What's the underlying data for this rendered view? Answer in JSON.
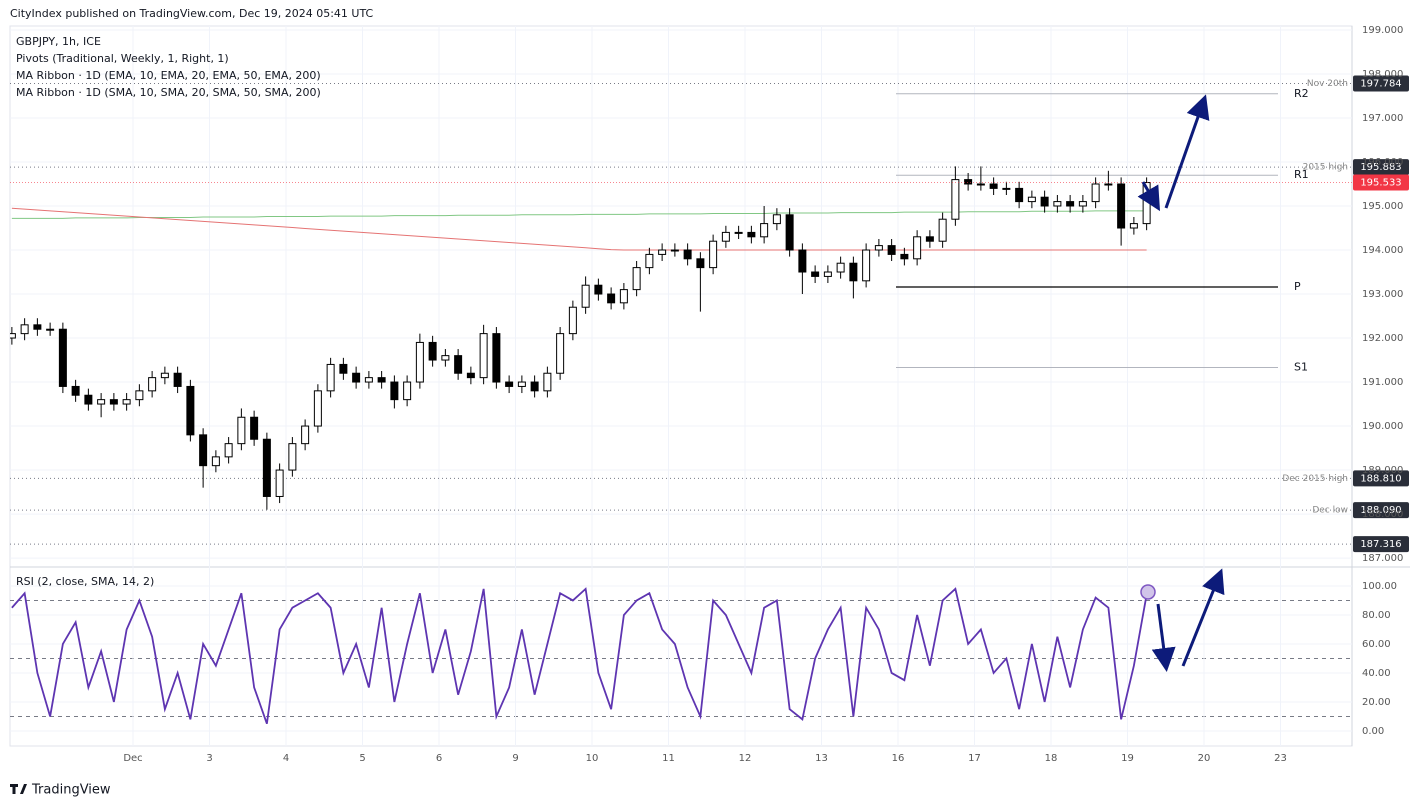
{
  "header": {
    "published": "CityIndex published on TradingView.com, Dec 19, 2024 05:41 UTC"
  },
  "chart_data": [
    {
      "type": "candlestick",
      "title": "GBPJPY, 1h, ICE",
      "indicators": [
        "Pivots (Traditional, Weekly, 1, Right, 1)",
        "MA Ribbon · 1D (EMA, 10, EMA, 20, EMA, 50, EMA, 200)",
        "MA Ribbon · 1D (SMA, 10, SMA, 20, SMA, 50, SMA, 200)"
      ],
      "open": [
        192.0,
        192.1,
        192.3,
        192.2,
        192.2,
        190.9,
        190.7,
        190.5,
        190.6,
        190.5,
        190.6,
        190.8,
        191.1,
        191.2,
        190.9,
        189.8,
        189.1,
        189.3,
        189.6,
        190.2,
        189.7,
        188.4,
        189.0,
        189.6,
        190.0,
        190.8,
        191.4,
        191.2,
        191.0,
        191.1,
        191.0,
        190.6,
        191.0,
        191.9,
        191.5,
        191.6,
        191.2,
        191.1,
        192.1,
        191.0,
        190.9,
        191.0,
        190.8,
        191.2,
        192.1,
        192.7,
        193.2,
        193.0,
        192.8,
        193.1,
        193.6,
        193.9,
        194.0,
        194.0,
        193.8,
        193.6,
        194.2,
        194.4,
        194.4,
        194.3,
        194.6,
        194.8,
        194.0,
        193.5,
        193.4,
        193.5,
        193.7,
        193.3,
        194.0,
        194.1,
        193.9,
        193.8,
        194.3,
        194.2,
        194.7,
        195.6,
        195.5,
        195.5,
        195.4,
        195.4,
        195.1,
        195.2,
        195.0,
        195.1,
        195.0,
        195.1,
        195.5,
        195.5,
        194.5,
        194.6,
        null,
        null,
        null,
        null,
        null,
        null,
        null,
        null,
        null,
        null,
        null,
        null,
        null,
        null,
        null
      ],
      "high": [
        192.25,
        192.45,
        192.45,
        192.35,
        192.35,
        191.05,
        190.85,
        190.75,
        190.75,
        190.75,
        190.95,
        191.25,
        191.35,
        191.35,
        191.05,
        189.95,
        189.45,
        189.75,
        190.4,
        190.35,
        189.85,
        189.15,
        189.75,
        190.15,
        190.95,
        191.55,
        191.55,
        191.35,
        191.25,
        191.25,
        191.15,
        191.15,
        192.1,
        192.05,
        191.75,
        191.75,
        191.35,
        192.3,
        192.25,
        191.15,
        191.15,
        191.15,
        191.35,
        192.25,
        192.85,
        193.4,
        193.35,
        193.15,
        193.25,
        193.75,
        194.05,
        194.15,
        194.15,
        194.15,
        193.95,
        194.35,
        194.55,
        194.55,
        194.55,
        195.0,
        194.95,
        194.95,
        194.15,
        193.65,
        193.65,
        193.85,
        193.85,
        194.15,
        194.25,
        194.25,
        194.05,
        194.45,
        194.45,
        194.85,
        195.9,
        195.75,
        195.9,
        195.65,
        195.55,
        195.55,
        195.35,
        195.35,
        195.25,
        195.25,
        195.25,
        195.65,
        195.8,
        195.65,
        194.75,
        195.65,
        null,
        null,
        null,
        null,
        null,
        null,
        null,
        null,
        null,
        null,
        null,
        null,
        null,
        null,
        null
      ],
      "low": [
        191.85,
        191.95,
        192.05,
        192.05,
        190.75,
        190.55,
        190.35,
        190.2,
        190.35,
        190.35,
        190.45,
        190.65,
        190.95,
        190.75,
        189.65,
        188.6,
        188.95,
        189.15,
        189.45,
        189.55,
        188.1,
        188.25,
        188.85,
        189.45,
        189.85,
        190.65,
        191.05,
        190.85,
        190.85,
        190.85,
        190.4,
        190.45,
        190.85,
        191.35,
        191.35,
        191.05,
        190.95,
        190.95,
        190.85,
        190.75,
        190.75,
        190.65,
        190.65,
        191.05,
        191.95,
        192.55,
        192.85,
        192.65,
        192.65,
        192.95,
        193.45,
        193.75,
        193.85,
        193.65,
        192.6,
        193.45,
        194.05,
        194.25,
        194.15,
        194.15,
        194.45,
        193.85,
        193.0,
        193.25,
        193.25,
        193.35,
        192.9,
        193.15,
        193.85,
        193.75,
        193.65,
        193.65,
        194.05,
        194.05,
        194.55,
        195.35,
        195.35,
        195.25,
        195.25,
        194.95,
        194.95,
        194.85,
        194.85,
        194.85,
        194.85,
        194.95,
        195.35,
        194.1,
        194.35,
        194.45,
        null,
        null,
        null,
        null,
        null,
        null,
        null,
        null,
        null,
        null,
        null,
        null,
        null,
        null,
        null
      ],
      "close": [
        192.1,
        192.3,
        192.2,
        192.2,
        190.9,
        190.7,
        190.5,
        190.6,
        190.5,
        190.6,
        190.8,
        191.1,
        191.2,
        190.9,
        189.8,
        189.1,
        189.3,
        189.6,
        190.2,
        189.7,
        188.4,
        189.0,
        189.6,
        190.0,
        190.8,
        191.4,
        191.2,
        191.0,
        191.1,
        191.0,
        190.6,
        191.0,
        191.9,
        191.5,
        191.6,
        191.2,
        191.1,
        192.1,
        191.0,
        190.9,
        191.0,
        190.8,
        191.2,
        192.1,
        192.7,
        193.2,
        193.0,
        192.8,
        193.1,
        193.6,
        193.9,
        194.0,
        194.0,
        193.8,
        193.6,
        194.2,
        194.4,
        194.4,
        194.3,
        194.6,
        194.8,
        194.0,
        193.5,
        193.4,
        193.5,
        193.7,
        193.3,
        194.0,
        194.1,
        193.9,
        193.8,
        194.3,
        194.2,
        194.7,
        195.6,
        195.5,
        195.5,
        195.4,
        195.4,
        195.1,
        195.2,
        195.0,
        195.1,
        195.0,
        195.1,
        195.5,
        195.5,
        194.5,
        194.6,
        195.533,
        null,
        null,
        null,
        null,
        null,
        null,
        null,
        null,
        null,
        null,
        null,
        null,
        null,
        null,
        null
      ],
      "up_color": "#ffffff",
      "down_color": "#000000",
      "lines": [
        {
          "color": "#81c784",
          "values": [
            194.72,
            194.72,
            194.72,
            194.72,
            194.72,
            194.73,
            194.73,
            194.73,
            194.73,
            194.73,
            194.74,
            194.74,
            194.74,
            194.74,
            194.74,
            194.75,
            194.75,
            194.75,
            194.75,
            194.75,
            194.76,
            194.76,
            194.76,
            194.76,
            194.76,
            194.77,
            194.77,
            194.77,
            194.77,
            194.77,
            194.78,
            194.78,
            194.78,
            194.78,
            194.78,
            194.79,
            194.79,
            194.79,
            194.79,
            194.79,
            194.8,
            194.8,
            194.8,
            194.8,
            194.8,
            194.81,
            194.81,
            194.81,
            194.81,
            194.81,
            194.82,
            194.82,
            194.82,
            194.82,
            194.82,
            194.83,
            194.83,
            194.83,
            194.83,
            194.83,
            194.84,
            194.84,
            194.84,
            194.84,
            194.84,
            194.85,
            194.85,
            194.85,
            194.85,
            194.85,
            194.86,
            194.86,
            194.86,
            194.86,
            194.86,
            194.87,
            194.87,
            194.87,
            194.87,
            194.87,
            194.88,
            194.88,
            194.88,
            194.88,
            194.88,
            194.89,
            194.89,
            194.89,
            194.89,
            194.89,
            null,
            null,
            null,
            null,
            null,
            null,
            null,
            null,
            null,
            null,
            null,
            null,
            null,
            null,
            null
          ]
        },
        {
          "color": "#e57373",
          "values": [
            194.95,
            194.93,
            194.91,
            194.89,
            194.87,
            194.85,
            194.83,
            194.81,
            194.79,
            194.77,
            194.75,
            194.73,
            194.71,
            194.69,
            194.67,
            194.65,
            194.63,
            194.61,
            194.59,
            194.57,
            194.55,
            194.53,
            194.51,
            194.49,
            194.47,
            194.45,
            194.43,
            194.41,
            194.39,
            194.37,
            194.35,
            194.33,
            194.31,
            194.29,
            194.27,
            194.25,
            194.23,
            194.21,
            194.19,
            194.17,
            194.15,
            194.13,
            194.11,
            194.09,
            194.07,
            194.05,
            194.03,
            194.01,
            194.0,
            194.0,
            194.0,
            194.0,
            194.0,
            194.0,
            194.0,
            194.0,
            194.0,
            194.0,
            194.0,
            194.0,
            194.0,
            194.0,
            194.0,
            194.0,
            194.0,
            194.0,
            194.0,
            194.0,
            194.0,
            194.0,
            194.0,
            194.0,
            194.0,
            194.0,
            194.0,
            194.0,
            194.0,
            194.0,
            194.0,
            194.0,
            194.0,
            194.0,
            194.0,
            194.0,
            194.0,
            194.0,
            194.0,
            194.0,
            194.0,
            194.0,
            null,
            null,
            null,
            null,
            null,
            null,
            null,
            null,
            null,
            null,
            null,
            null,
            null,
            null,
            null
          ]
        }
      ],
      "pivots": [
        {
          "name": "R2",
          "value": 197.55
        },
        {
          "name": "R1",
          "value": 195.7
        },
        {
          "name": "P",
          "value": 193.16
        },
        {
          "name": "S1",
          "value": 191.33
        }
      ],
      "levels": [
        {
          "label": "Nov 20th",
          "value": 197.784
        },
        {
          "label": "2015 high",
          "value": 195.883
        },
        {
          "label": "Dec 2015 high",
          "value": 188.81,
          "value_label": "188.810"
        },
        {
          "label": "Dec low",
          "value": 188.09,
          "value_label": "188.090"
        },
        {
          "value": 187.316
        }
      ],
      "last_price": 195.533,
      "last_color": "#f23645",
      "ylim": [
        186.82,
        199.09
      ],
      "yticks": [
        {
          "value": 187,
          "label": "187.000"
        },
        {
          "value": 188,
          "label": "188.000"
        },
        {
          "value": 189,
          "label": "189.000"
        },
        {
          "value": 190,
          "label": "190.000"
        },
        {
          "value": 191,
          "label": "191.000"
        },
        {
          "value": 192,
          "label": "192.000"
        },
        {
          "value": 193,
          "label": "193.000"
        },
        {
          "value": 194,
          "label": "194.000"
        },
        {
          "value": 195,
          "label": "195.000"
        },
        {
          "value": 196,
          "label": "196.000"
        },
        {
          "value": 197,
          "label": "197.000"
        },
        {
          "value": 198,
          "label": "198.000"
        },
        {
          "value": 199,
          "label": "199.000"
        }
      ]
    },
    {
      "type": "line",
      "title": "RSI (2, close, SMA, 14, 2)",
      "categories": [
        null,
        null,
        null,
        null,
        null,
        null,
        null,
        null,
        null,
        null,
        "Dec",
        null,
        null,
        null,
        null,
        null,
        "3",
        null,
        null,
        null,
        null,
        null,
        "4",
        null,
        null,
        null,
        null,
        null,
        "5",
        null,
        null,
        null,
        null,
        null,
        "6",
        null,
        null,
        null,
        null,
        null,
        "9",
        null,
        null,
        null,
        null,
        null,
        "10",
        null,
        null,
        null,
        null,
        null,
        "11",
        null,
        null,
        null,
        null,
        null,
        "12",
        null,
        null,
        null,
        null,
        null,
        "13",
        null,
        null,
        null,
        null,
        null,
        "16",
        null,
        null,
        null,
        null,
        null,
        "17",
        null,
        null,
        null,
        null,
        null,
        "18",
        null,
        null,
        null,
        null,
        null,
        "19",
        null,
        null,
        null,
        null,
        null,
        "20",
        null,
        null,
        null,
        null,
        null,
        "23",
        null,
        null,
        null,
        null
      ],
      "values": [
        85,
        95,
        40,
        10,
        60,
        75,
        30,
        55,
        20,
        70,
        90,
        65,
        15,
        40,
        8,
        60,
        45,
        70,
        95,
        30,
        5,
        70,
        85,
        90,
        95,
        85,
        40,
        60,
        30,
        85,
        20,
        60,
        95,
        40,
        70,
        25,
        55,
        98,
        10,
        30,
        70,
        25,
        60,
        95,
        90,
        98,
        40,
        15,
        80,
        90,
        95,
        70,
        60,
        30,
        10,
        90,
        80,
        60,
        40,
        85,
        90,
        15,
        8,
        50,
        70,
        85,
        10,
        85,
        70,
        40,
        35,
        80,
        45,
        90,
        98,
        60,
        70,
        40,
        50,
        15,
        60,
        20,
        65,
        30,
        70,
        92,
        85,
        8,
        45,
        94,
        null,
        null,
        null,
        null,
        null,
        null,
        null,
        null,
        null,
        null,
        null,
        null,
        null,
        null,
        null
      ],
      "color": "#5e35b1",
      "bands": [
        90,
        50,
        10
      ],
      "ylim": [
        -9,
        112.4
      ],
      "yticks": [
        {
          "value": 0,
          "label": "0.00"
        },
        {
          "value": 20,
          "label": "20.00"
        },
        {
          "value": 40,
          "label": "40.00"
        },
        {
          "value": 60,
          "label": "60.00"
        },
        {
          "value": 80,
          "label": "80.00"
        },
        {
          "value": 100,
          "label": "100.00"
        }
      ]
    }
  ],
  "footer": {
    "brand": "TradingView"
  }
}
